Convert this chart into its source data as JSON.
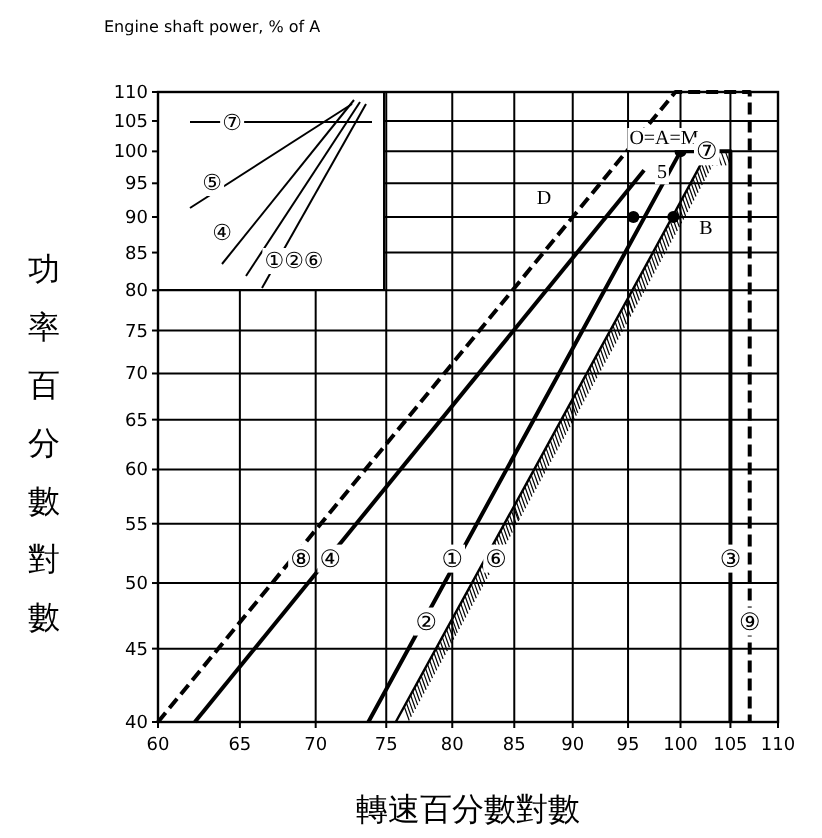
{
  "chart_data": {
    "type": "line",
    "title": "Engine shaft power, % of A",
    "xlabel": "轉速百分數對數",
    "ylabel": "功率百分數對數",
    "log": "xy",
    "grid": true,
    "xlim": [
      60,
      110
    ],
    "ylim": [
      40,
      110
    ],
    "xticks": [
      60,
      65,
      70,
      75,
      80,
      85,
      90,
      95,
      100,
      105,
      110
    ],
    "yticks": [
      40,
      45,
      50,
      55,
      60,
      65,
      70,
      75,
      80,
      85,
      90,
      95,
      100,
      105,
      110
    ],
    "series": [
      {
        "color": "#000000",
        "line_style": "dashed",
        "x": [
          60,
          99.5,
          107,
          107
        ],
        "values": [
          40,
          110,
          110,
          40
        ]
      },
      {
        "color": "#000000",
        "line_style": "solid",
        "x": [
          62.2,
          96.5
        ],
        "values": [
          40,
          97
        ]
      },
      {
        "color": "#000000",
        "line_style": "solid",
        "x": [
          73.7,
          100,
          105,
          105
        ],
        "values": [
          40,
          100,
          100,
          40
        ]
      },
      {
        "color": "#000000",
        "x": [
          75.7,
          80,
          85,
          90,
          95,
          100,
          102.7,
          104.5
        ],
        "values": [
          40,
          47.2,
          56.6,
          67.2,
          79,
          92.2,
          100,
          100
        ]
      },
      {
        "type": "scatter",
        "color": "#000000",
        "marker": "circle",
        "x": [
          100,
          95.5,
          99.3
        ],
        "values": [
          100,
          90,
          90
        ]
      }
    ],
    "annotations": [
      {
        "text": "⑧",
        "x": 69,
        "y": 52
      },
      {
        "text": "④",
        "x": 71,
        "y": 52
      },
      {
        "text": "①",
        "x": 80,
        "y": 52
      },
      {
        "text": "⑥",
        "x": 83.5,
        "y": 52
      },
      {
        "text": "②",
        "x": 78,
        "y": 47
      },
      {
        "text": "③",
        "x": 105,
        "y": 52
      },
      {
        "text": "⑨",
        "x": 107,
        "y": 47
      },
      {
        "text": "⑦",
        "x": 102.6,
        "y": 100
      },
      {
        "text": "5",
        "x": 98.2,
        "y": 97
      },
      "O=A=M",
      "D",
      "B",
      "⑦",
      "⑤",
      "④",
      "①②⑥"
    ]
  }
}
